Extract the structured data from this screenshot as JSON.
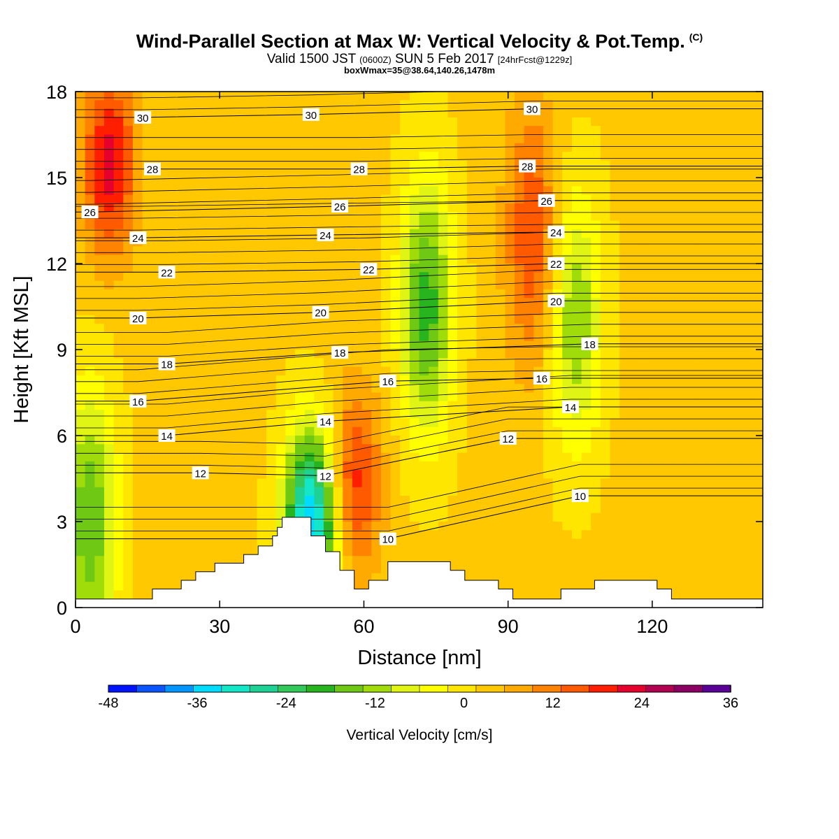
{
  "header": {
    "title": "Wind-Parallel Section at Max W: Vertical Velocity & Pot.Temp.",
    "copyright": "(C)",
    "valid_prefix": "Valid 1500 JST",
    "valid_utc": "(0600Z)",
    "valid_date": "SUN 5 Feb 2017",
    "forecast": "[24hrFcst@1229z]",
    "boxwmax": "boxWmax=35@38.64,140.26,1478m"
  },
  "chart_data": {
    "type": "heatmap",
    "xlabel": "Distance [nm]",
    "ylabel": "Height [Kft MSL]",
    "xlim": [
      0,
      143
    ],
    "ylim": [
      0,
      18
    ],
    "xticks": [
      0,
      30,
      60,
      90,
      120
    ],
    "yticks": [
      0,
      3,
      6,
      9,
      12,
      15,
      18
    ],
    "colorbar": {
      "label": "Vertical Velocity [cm/s]",
      "min": -48,
      "max": 36,
      "step": 4,
      "ticks": [
        -48,
        -36,
        -24,
        -12,
        0,
        12,
        24,
        36
      ],
      "colors": [
        "#0014ff",
        "#0a55ff",
        "#0096ff",
        "#00dcff",
        "#14e6c8",
        "#1ed296",
        "#32c85a",
        "#28b41e",
        "#6ec814",
        "#a0dc0a",
        "#e1f514",
        "#ffff00",
        "#ffe600",
        "#ffc800",
        "#ffaa00",
        "#ff8200",
        "#ff5a00",
        "#ff1e00",
        "#e6002d",
        "#b40050",
        "#8c0064",
        "#5a0096"
      ]
    },
    "velocity_features": [
      {
        "x": 7,
        "y": 15.5,
        "value": 26
      },
      {
        "x": 3,
        "y": 3,
        "value": -16
      },
      {
        "x": 49,
        "y": 3.0,
        "value": -36
      },
      {
        "x": 58,
        "y": 4.3,
        "value": 22
      },
      {
        "x": 73,
        "y": 10.5,
        "value": -18
      },
      {
        "x": 95,
        "y": 13,
        "value": 20
      },
      {
        "x": 104,
        "y": 10,
        "value": -12
      }
    ],
    "contour_labels": [
      {
        "value": "30",
        "x": 14,
        "y": 17.1
      },
      {
        "value": "30",
        "x": 49,
        "y": 17.2
      },
      {
        "value": "30",
        "x": 95,
        "y": 17.4
      },
      {
        "value": "28",
        "x": 16,
        "y": 15.3
      },
      {
        "value": "28",
        "x": 59,
        "y": 15.3
      },
      {
        "value": "28",
        "x": 94,
        "y": 15.4
      },
      {
        "value": "26",
        "x": 3,
        "y": 13.8
      },
      {
        "value": "26",
        "x": 55,
        "y": 14.0
      },
      {
        "value": "26",
        "x": 98,
        "y": 14.2
      },
      {
        "value": "24",
        "x": 13,
        "y": 12.9
      },
      {
        "value": "24",
        "x": 52,
        "y": 13.0
      },
      {
        "value": "24",
        "x": 100,
        "y": 13.1
      },
      {
        "value": "22",
        "x": 19,
        "y": 11.7
      },
      {
        "value": "22",
        "x": 61,
        "y": 11.8
      },
      {
        "value": "22",
        "x": 100,
        "y": 12.0
      },
      {
        "value": "20",
        "x": 13,
        "y": 10.1
      },
      {
        "value": "20",
        "x": 51,
        "y": 10.3
      },
      {
        "value": "20",
        "x": 100,
        "y": 10.7
      },
      {
        "value": "18",
        "x": 19,
        "y": 8.5
      },
      {
        "value": "18",
        "x": 55,
        "y": 8.9
      },
      {
        "value": "18",
        "x": 107,
        "y": 9.2
      },
      {
        "value": "16",
        "x": 13,
        "y": 7.2
      },
      {
        "value": "16",
        "x": 65,
        "y": 7.9
      },
      {
        "value": "16",
        "x": 97,
        "y": 8.0
      },
      {
        "value": "14",
        "x": 19,
        "y": 6.0
      },
      {
        "value": "14",
        "x": 52,
        "y": 6.5
      },
      {
        "value": "14",
        "x": 103,
        "y": 7.0
      },
      {
        "value": "12",
        "x": 26,
        "y": 4.7
      },
      {
        "value": "12",
        "x": 52,
        "y": 4.6
      },
      {
        "value": "12",
        "x": 90,
        "y": 5.9
      },
      {
        "value": "10",
        "x": 65,
        "y": 2.4
      },
      {
        "value": "10",
        "x": 105,
        "y": 3.9
      }
    ],
    "terrain_height_kft": [
      [
        0,
        0.3
      ],
      [
        16,
        0.3
      ],
      [
        16,
        0.65
      ],
      [
        22,
        0.65
      ],
      [
        22,
        0.95
      ],
      [
        25,
        0.95
      ],
      [
        25,
        1.25
      ],
      [
        29,
        1.25
      ],
      [
        29,
        1.55
      ],
      [
        35,
        1.55
      ],
      [
        35,
        1.85
      ],
      [
        38,
        1.85
      ],
      [
        38,
        2.15
      ],
      [
        41,
        2.15
      ],
      [
        41,
        2.5
      ],
      [
        42,
        2.5
      ],
      [
        42,
        2.8
      ],
      [
        43,
        2.8
      ],
      [
        43,
        3.15
      ],
      [
        49,
        3.15
      ],
      [
        49,
        2.5
      ],
      [
        52,
        2.5
      ],
      [
        52,
        1.95
      ],
      [
        55,
        1.95
      ],
      [
        55,
        1.3
      ],
      [
        58,
        1.3
      ],
      [
        58,
        0.65
      ],
      [
        61,
        0.65
      ],
      [
        61,
        0.95
      ],
      [
        65,
        0.95
      ],
      [
        65,
        1.6
      ],
      [
        78,
        1.6
      ],
      [
        78,
        1.3
      ],
      [
        81,
        1.3
      ],
      [
        81,
        0.95
      ],
      [
        88,
        0.95
      ],
      [
        88,
        0.65
      ],
      [
        91,
        0.65
      ],
      [
        91,
        0.3
      ],
      [
        101,
        0.3
      ],
      [
        101,
        0.65
      ],
      [
        108,
        0.65
      ],
      [
        108,
        0.95
      ],
      [
        121,
        0.95
      ],
      [
        121,
        0.65
      ],
      [
        124,
        0.65
      ],
      [
        124,
        0.3
      ],
      [
        143,
        0.3
      ]
    ]
  }
}
